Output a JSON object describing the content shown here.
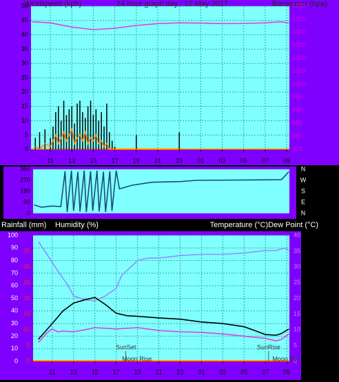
{
  "chart_data": [
    {
      "type": "line",
      "title": "24 hour graph day : 12 May 2017",
      "y_label": "Windspeed (kph)",
      "y2_label": "Barometer (hpa)",
      "xlim": [
        0.2,
        24.25
      ],
      "xticks": [
        {
          "value": 2,
          "label": "11"
        },
        {
          "value": 4,
          "label": "13"
        },
        {
          "value": 6,
          "label": "15"
        },
        {
          "value": 8,
          "label": "17"
        },
        {
          "value": 10,
          "label": "19"
        },
        {
          "value": 12,
          "label": "21"
        },
        {
          "value": 14,
          "label": "23"
        },
        {
          "value": 16,
          "label": "01"
        },
        {
          "value": 18,
          "label": "03"
        },
        {
          "value": 20,
          "label": "05"
        },
        {
          "value": 22,
          "label": "07"
        },
        {
          "value": 24,
          "label": "09"
        }
      ],
      "ylim": [
        0,
        50
      ],
      "yticks": [
        0,
        5,
        10,
        15,
        20,
        25,
        30,
        35,
        40,
        45,
        50
      ],
      "y2lim": [
        975,
        1030
      ],
      "y2ticks": [
        975,
        980,
        985,
        990,
        995,
        1000,
        1005,
        1010,
        1015,
        1020,
        1025,
        1030
      ],
      "grid": true,
      "series": [
        {
          "style": "bars",
          "color": "#000000",
          "x": [
            0.6,
            1,
            1.5,
            2,
            2.25,
            2.5,
            2.75,
            3,
            3.25,
            3.5,
            3.75,
            4,
            4.25,
            4.5,
            4.75,
            5,
            5.25,
            5.5,
            5.75,
            6,
            6.25,
            6.5,
            6.75,
            7,
            7.25,
            7.5,
            7.75,
            8,
            10,
            14
          ],
          "values": [
            4,
            6,
            7,
            4,
            8,
            13,
            15,
            10,
            17,
            12,
            14,
            15,
            9,
            16,
            17,
            13,
            11,
            15,
            17,
            12,
            14,
            10,
            13,
            8,
            16,
            6,
            3,
            1,
            5,
            6
          ]
        },
        {
          "style": "line",
          "color": "#ff8000",
          "x": [
            0.6,
            1,
            1.5,
            2,
            2.25,
            2.5,
            2.75,
            3,
            3.25,
            3.5,
            3.75,
            4,
            4.25,
            4.5,
            4.75,
            5,
            5.25,
            5.5,
            5.75,
            6,
            6.25,
            6.5,
            6.75,
            7,
            7.25,
            7.5,
            7.75,
            8,
            10,
            14
          ],
          "values": [
            1,
            0,
            2,
            1,
            3,
            5,
            2,
            4,
            6,
            3,
            5,
            7,
            2,
            4,
            5,
            3,
            6,
            2,
            4,
            3,
            5,
            2,
            3,
            1,
            2,
            0,
            0,
            0,
            0,
            0
          ]
        },
        {
          "style": "line",
          "color": "#e040e0",
          "axis": "y2",
          "x": [
            0.3,
            2,
            4,
            6,
            8,
            10,
            12,
            14,
            16,
            18,
            20,
            22,
            23.5,
            24.2
          ],
          "values": [
            1024,
            1023.6,
            1022,
            1021,
            1021.5,
            1022.6,
            1023.3,
            1023.6,
            1023.5,
            1023.3,
            1023.4,
            1023.6,
            1024,
            1023.5
          ]
        }
      ]
    },
    {
      "type": "line",
      "xlim": [
        0.2,
        24.25
      ],
      "ylim": [
        0,
        360
      ],
      "yticks": [
        0,
        90,
        180,
        270,
        360
      ],
      "y2ticks": [
        {
          "value": 360,
          "label": "N"
        },
        {
          "value": 270,
          "label": "W"
        },
        {
          "value": 180,
          "label": "S"
        },
        {
          "value": 90,
          "label": "E"
        },
        {
          "value": 0,
          "label": "N"
        }
      ],
      "series": [
        {
          "style": "line",
          "color": "#1a4a7a",
          "x": [
            0.3,
            1,
            2,
            2.8,
            3.2,
            3.4,
            3.8,
            4.0,
            4.4,
            4.6,
            5.0,
            5.2,
            5.6,
            5.8,
            6.2,
            6.4,
            6.8,
            7.0,
            7.4,
            7.6,
            8.0,
            8.3,
            9.5,
            11,
            11.5,
            14,
            15.5,
            23.5,
            24.2
          ],
          "values": [
            70,
            50,
            60,
            55,
            345,
            10,
            350,
            20,
            340,
            15,
            350,
            10,
            345,
            20,
            350,
            15,
            340,
            10,
            345,
            20,
            350,
            200,
            230,
            250,
            255,
            260,
            270,
            275,
            340
          ]
        }
      ]
    },
    {
      "type": "line",
      "y_label": "Humidity (%)",
      "y2_label": "Temperature (°C)Dew Point (°C)",
      "y3_label": "Rainfall (mm)",
      "xlim": [
        0.2,
        24.25
      ],
      "xticks": [
        {
          "value": 2,
          "label": "11"
        },
        {
          "value": 4,
          "label": "13"
        },
        {
          "value": 6,
          "label": "15"
        },
        {
          "value": 8,
          "label": "17"
        },
        {
          "value": 10,
          "label": "19"
        },
        {
          "value": 12,
          "label": "21"
        },
        {
          "value": 14,
          "label": "23"
        },
        {
          "value": 16,
          "label": "01"
        },
        {
          "value": 18,
          "label": "03"
        },
        {
          "value": 20,
          "label": "05"
        },
        {
          "value": 22,
          "label": "07"
        },
        {
          "value": 24,
          "label": "09"
        }
      ],
      "ylim": [
        0,
        100
      ],
      "yticks": [
        0,
        10,
        20,
        30,
        40,
        50,
        60,
        70,
        80,
        90,
        100
      ],
      "y2lim": [
        0,
        40
      ],
      "y2ticks": [
        0,
        5,
        10,
        15,
        20,
        25,
        30,
        35,
        40
      ],
      "y3lim": [
        0,
        40
      ],
      "y3ticks": [
        0,
        5,
        10,
        15,
        20,
        25,
        30,
        35
      ],
      "grid": true,
      "annotations": [
        {
          "text": "SunSet",
          "x": 8.9
        },
        {
          "text": "SunRise",
          "x": 22.3
        },
        {
          "text": "Moon Rise",
          "x": 9.95
        },
        {
          "text": "Moon Set",
          "x": 23.9
        }
      ],
      "series": [
        {
          "style": "line",
          "color": "#ff2020",
          "axis": "y3",
          "x": [
            0.2,
            24.25
          ],
          "values": [
            0,
            0
          ]
        },
        {
          "style": "line",
          "color": "#9090ff",
          "x": [
            0.7,
            1.5,
            2.5,
            3.5,
            4,
            5,
            6,
            7,
            8,
            8.5,
            9.5,
            10,
            11,
            12,
            14,
            16,
            18,
            20,
            21,
            22,
            23,
            23.8,
            24.2
          ],
          "values": [
            95,
            85,
            72,
            60,
            52,
            49,
            48,
            52,
            58,
            68,
            76,
            80,
            82,
            82,
            84,
            85,
            85,
            86,
            87,
            88,
            88,
            90,
            88
          ]
        },
        {
          "style": "line",
          "color": "#000000",
          "axis": "y2",
          "x": [
            0.7,
            2,
            3,
            4,
            5,
            6,
            7,
            8,
            9,
            10,
            12,
            14,
            16,
            18,
            20,
            21,
            22,
            23,
            23.5,
            24.2
          ],
          "values": [
            7,
            12,
            16,
            18.5,
            19.5,
            20.3,
            18,
            15.3,
            14.5,
            14.3,
            13.8,
            13.4,
            12.5,
            12,
            11,
            9.8,
            8.5,
            8.3,
            8.8,
            10.3
          ]
        },
        {
          "style": "line",
          "color": "#e040e0",
          "axis": "y2",
          "x": [
            0.7,
            1.5,
            2,
            2.5,
            3,
            4,
            5,
            6,
            8,
            10,
            12,
            14,
            16,
            18,
            20,
            22,
            23,
            23.5,
            24.2
          ],
          "values": [
            6,
            9,
            10.3,
            9.4,
            9.6,
            9.4,
            10,
            10.7,
            10.3,
            10.7,
            9.8,
            9.4,
            9.2,
            8.7,
            8,
            7.3,
            6.5,
            7,
            8.7
          ]
        }
      ]
    }
  ]
}
